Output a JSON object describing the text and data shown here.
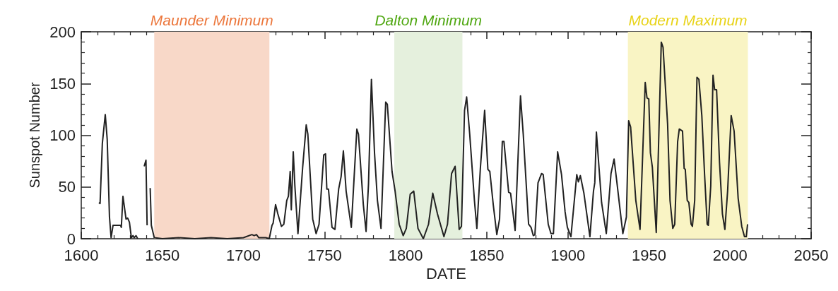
{
  "chart_data": {
    "type": "line",
    "xlabel": "DATE",
    "ylabel": "Sunspot Number",
    "xlim": [
      1600,
      2050
    ],
    "xticks": [
      1600,
      1650,
      1700,
      1750,
      1800,
      1850,
      1900,
      1950,
      2000,
      2050
    ],
    "ylim": [
      0,
      200
    ],
    "yticks": [
      0,
      50,
      100,
      150,
      200
    ],
    "marker": "none",
    "line_style": "solid",
    "bands": [
      {
        "axis": "x",
        "from": 1645,
        "to": 1716,
        "label": "Maunder Minimum",
        "color": "#f8d8c8"
      },
      {
        "axis": "x",
        "from": 1793,
        "to": 1835,
        "label": "Dalton Minimum",
        "color": "#e5f0dd"
      },
      {
        "axis": "x",
        "from": 1937,
        "to": 2011,
        "label": "Modern Maximum",
        "color": "#f9f4c4"
      }
    ],
    "series": [
      {
        "color": "#222222",
        "x": [
          1610.9,
          1611.6,
          1613,
          1614.8,
          1616,
          1617.4,
          1618.4,
          1619.6,
          1624.2,
          1624.7,
          1625.7,
          1627.6,
          1628.6,
          1629.7,
          1630.9,
          1631.9,
          1632.6,
          1633.8,
          1634.8,
          1636.8,
          1638.8,
          1639.9,
          1640.6,
          1641.6,
          1642.5,
          1643.2,
          1645,
          1650,
          1660,
          1670,
          1680,
          1690,
          1700,
          1705.2,
          1706.6,
          1708,
          1709.5,
          1713.8,
          1715.9,
          1717.6,
          1718.3,
          1719.8,
          1721.2,
          1723.4,
          1724.9,
          1726.7,
          1727.7,
          1728.8,
          1729.5,
          1730.7,
          1731.7,
          1733.6,
          1736.5,
          1738.7,
          1739.7,
          1742.7,
          1744.8,
          1746.6,
          1749.5,
          1750.6,
          1751.4,
          1752.4,
          1754.6,
          1756.4,
          1758.7,
          1760.2,
          1761.6,
          1763.3,
          1766.5,
          1769.9,
          1770.9,
          1773.9,
          1775.6,
          1777.1,
          1778.9,
          1780.8,
          1782.6,
          1784.8,
          1787.7,
          1788.7,
          1791.6,
          1793.5,
          1796,
          1798.5,
          1800.4,
          1802.8,
          1805,
          1807.6,
          1810.9,
          1814.1,
          1816.7,
          1819.6,
          1823.6,
          1825.8,
          1828.3,
          1830.5,
          1833,
          1834.4,
          1836.3,
          1837.6,
          1839.5,
          1842.4,
          1843.9,
          1846.1,
          1848.7,
          1850.7,
          1851.9,
          1854,
          1856.2,
          1857.9,
          1859.6,
          1860.6,
          1863.5,
          1864.7,
          1867.5,
          1870.8,
          1872.5,
          1875.8,
          1877.3,
          1878.7,
          1879.7,
          1881.6,
          1883.8,
          1884.8,
          1887.9,
          1889.6,
          1891.1,
          1893.7,
          1896.1,
          1898.3,
          1899.7,
          1901.9,
          1905.5,
          1906.5,
          1907.7,
          1909.9,
          1913.6,
          1915.8,
          1916.6,
          1917.6,
          1920.8,
          1923.7,
          1926.6,
          1928.5,
          1930.2,
          1933.9,
          1936.1,
          1937.5,
          1938.7,
          1941.9,
          1944.5,
          1947.7,
          1948.8,
          1949.9,
          1950.9,
          1952.1,
          1954.5,
          1957.6,
          1958.7,
          1961.5,
          1963,
          1964.7,
          1965.9,
          1967.7,
          1968.7,
          1970.7,
          1971.7,
          1972.4,
          1973.6,
          1974.6,
          1976,
          1976.8,
          1978.2,
          1979.6,
          1980.8,
          1982.6,
          1984.3,
          1985.9,
          1986.6,
          1988.1,
          1989.5,
          1990.5,
          1991.7,
          1993.5,
          1995.3,
          1996.8,
          1998.5,
          2000.7,
          2002.5,
          2005,
          2007.2,
          2008.9,
          2010,
          2010.8
        ],
        "values": [
          35,
          34,
          92,
          120,
          96,
          21,
          1,
          13,
          13,
          11,
          41,
          19,
          20,
          16,
          1,
          3,
          1,
          3,
          0,
          null,
          70,
          76,
          13,
          null,
          49,
          13,
          1,
          0,
          1,
          0,
          1,
          0,
          1,
          4,
          3,
          4,
          1,
          1,
          0,
          13,
          15,
          33,
          24,
          12,
          14,
          37,
          41,
          65,
          28,
          84,
          51,
          5,
          69,
          110,
          101,
          19,
          5,
          14,
          81,
          82,
          48,
          48,
          11,
          9,
          48,
          60,
          85,
          46,
          11,
          106,
          101,
          33,
          7,
          53,
          154,
          83,
          37,
          10,
          132,
          130,
          65,
          46,
          14,
          3,
          10,
          43,
          46,
          10,
          0,
          14,
          44,
          24,
          2,
          14,
          63,
          70,
          9,
          12,
          124,
          137,
          101,
          37,
          10,
          69,
          124,
          67,
          65,
          33,
          4,
          19,
          94,
          94,
          45,
          44,
          8,
          138,
          101,
          14,
          11,
          3,
          4,
          54,
          63,
          62,
          14,
          5,
          5,
          84,
          62,
          26,
          11,
          2,
          62,
          55,
          61,
          44,
          2,
          46,
          54,
          103,
          35,
          5,
          63,
          77,
          55,
          5,
          21,
          114,
          108,
          37,
          9,
          151,
          136,
          135,
          83,
          69,
          6,
          190,
          185,
          111,
          37,
          10,
          14,
          94,
          106,
          104,
          68,
          67,
          37,
          35,
          14,
          12,
          37,
          156,
          154,
          119,
          62,
          14,
          13,
          51,
          158,
          144,
          144,
          74,
          24,
          9,
          46,
          119,
          104,
          39,
          12,
          2,
          2,
          14
        ]
      }
    ]
  }
}
